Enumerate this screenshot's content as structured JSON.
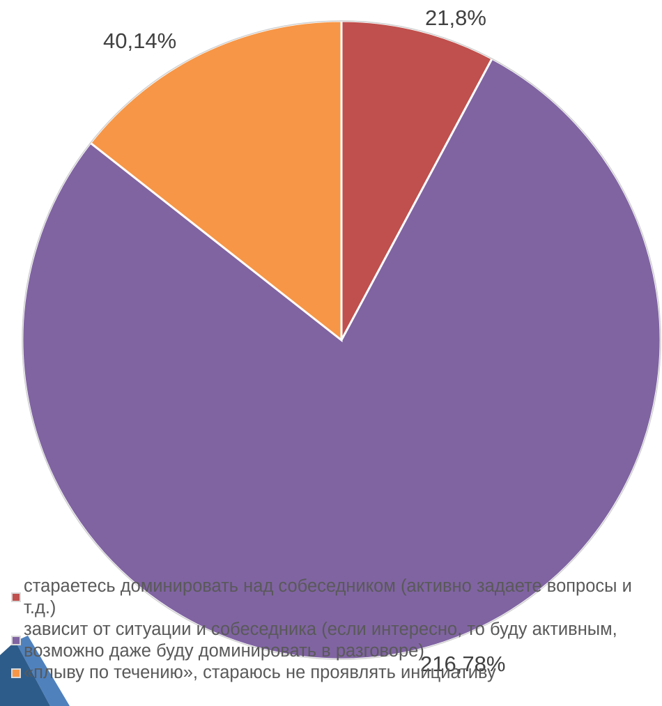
{
  "chart_data": {
    "type": "pie",
    "title": "",
    "series": [
      {
        "values": [
          21.8,
          216.78,
          40.14
        ]
      }
    ],
    "categories": [
      "стараетесь доминировать над собеседником (активно задаете вопросы и т.д.)",
      "зависит от ситуации и собеседника (если интересно, то буду активным, возможно даже буду доминировать в разговоре)",
      "«плыву по течению», стараюсь не проявлять инициативу"
    ],
    "labels": [
      "21,8%",
      "216,78%",
      "40,14%"
    ],
    "colors": [
      "#c0504d",
      "#8064a2",
      "#f79646"
    ],
    "legend_position": "bottom-left",
    "start_angle": "12 o'clock, clockwise"
  }
}
